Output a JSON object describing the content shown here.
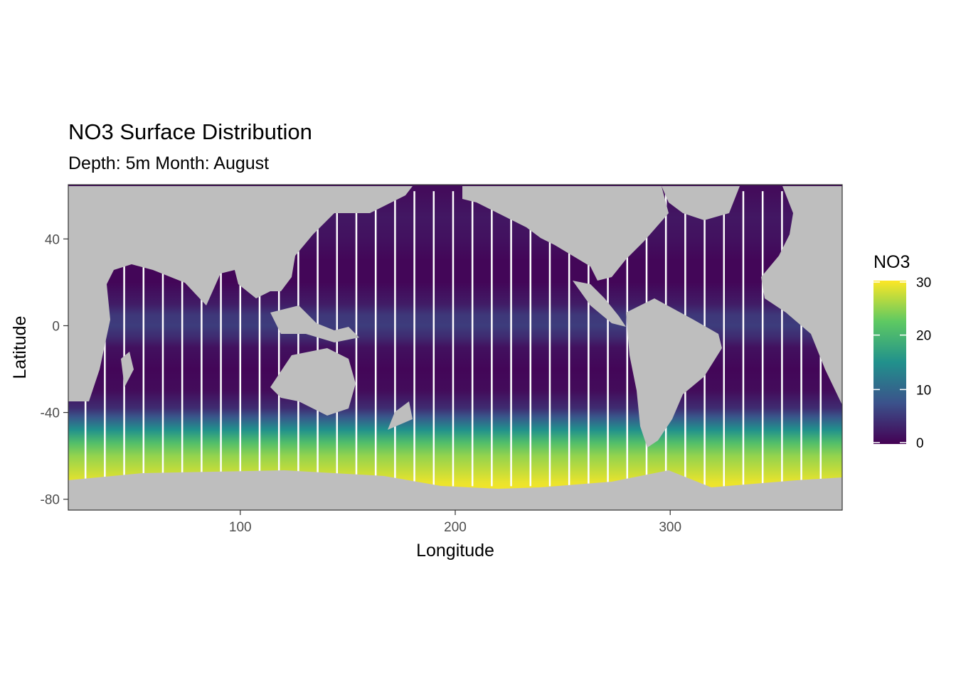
{
  "chart_data": {
    "type": "heatmap",
    "title": "NO3 Surface Distribution",
    "subtitle": "Depth: 5m  Month: August",
    "xlabel": "Longitude",
    "ylabel": "Latitude",
    "xlim": [
      20,
      380
    ],
    "ylim": [
      -85,
      65
    ],
    "x_ticks": [
      100,
      200,
      300
    ],
    "y_ticks": [
      40,
      0,
      -40,
      -80
    ],
    "x_tick_labels": [
      "100",
      "200",
      "300"
    ],
    "y_tick_labels": [
      "40",
      "0",
      "-40",
      "-80"
    ],
    "grid": false,
    "legend": {
      "title": "NO3",
      "placement": "right",
      "range": [
        0,
        30
      ],
      "ticks": [
        0,
        10,
        20,
        30
      ],
      "tick_labels": [
        "0",
        "10",
        "20",
        "30"
      ],
      "colors": [
        "#440154",
        "#3b528b",
        "#21918c",
        "#5ec962",
        "#fde725"
      ]
    },
    "land_color": "#bebebe",
    "no_data_color": "#ffffff",
    "field_profile": [
      {
        "lat": 62,
        "no3": 1.0
      },
      {
        "lat": 50,
        "no3": 2.0
      },
      {
        "lat": 40,
        "no3": 1.5
      },
      {
        "lat": 30,
        "no3": 0.5
      },
      {
        "lat": 20,
        "no3": 0.5
      },
      {
        "lat": 10,
        "no3": 2.5
      },
      {
        "lat": 5,
        "no3": 5.0
      },
      {
        "lat": 0,
        "no3": 5.5
      },
      {
        "lat": -5,
        "no3": 4.0
      },
      {
        "lat": -10,
        "no3": 1.5
      },
      {
        "lat": -20,
        "no3": 0.5
      },
      {
        "lat": -30,
        "no3": 1.0
      },
      {
        "lat": -38,
        "no3": 4.0
      },
      {
        "lat": -42,
        "no3": 8.0
      },
      {
        "lat": -48,
        "no3": 15.0
      },
      {
        "lat": -54,
        "no3": 21.0
      },
      {
        "lat": -60,
        "no3": 25.0
      },
      {
        "lat": -66,
        "no3": 27.0
      },
      {
        "lat": -72,
        "no3": 29.0
      },
      {
        "lat": -78,
        "no3": 30.0
      }
    ],
    "sampling_tracks_longitude": [
      28,
      37,
      46,
      55,
      64,
      73,
      82,
      91,
      100,
      109,
      118,
      127,
      136,
      145,
      154,
      163,
      172,
      181,
      190,
      199,
      208,
      217,
      226,
      235,
      244,
      253,
      262,
      271,
      280,
      289,
      298,
      307,
      316,
      325,
      334,
      343,
      352,
      361,
      370
    ]
  }
}
